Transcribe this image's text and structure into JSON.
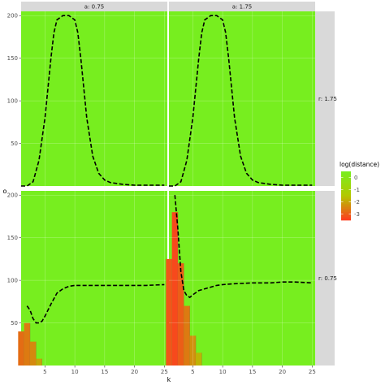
{
  "chart_data": {
    "type": "heatmap",
    "xlabel": "k",
    "ylabel": "o",
    "xlim": [
      1,
      25.5
    ],
    "ylim": [
      0,
      205
    ],
    "x_ticks": [
      5,
      10,
      15,
      20,
      25
    ],
    "y_ticks": [
      50,
      100,
      150,
      200
    ],
    "grid": true,
    "facet_columns": [
      "a: 0.75",
      "a: 1.75"
    ],
    "facet_rows": [
      "r: 1.75",
      "r: 0.75"
    ],
    "fill": {
      "title": "log(distance)",
      "legend_position": "right",
      "breaks": [
        0,
        -1,
        -2,
        -3
      ],
      "range": [
        -3.5,
        0.5
      ],
      "low_color": "#ff3b1f",
      "mid_color": "#b3c800",
      "high_color": "#77ee1f"
    },
    "panels": [
      {
        "col": "a: 0.75",
        "row": "r: 1.75",
        "boundary_line": {
          "x": [
            1,
            2,
            3,
            4,
            5,
            6,
            6.5,
            7,
            8,
            9,
            10,
            10.5,
            11,
            12,
            13,
            14,
            15,
            16,
            18,
            20,
            22,
            25
          ],
          "y": [
            0,
            0,
            5,
            30,
            80,
            150,
            180,
            195,
            200,
            200,
            195,
            180,
            150,
            80,
            35,
            15,
            7,
            4,
            2,
            1,
            1,
            1
          ]
        },
        "low_region": []
      },
      {
        "col": "a: 1.75",
        "row": "r: 1.75",
        "boundary_line": {
          "x": [
            1,
            2,
            3,
            4,
            5,
            6,
            6.5,
            7,
            8,
            9,
            10,
            10.5,
            11,
            12,
            13,
            14,
            15,
            16,
            18,
            20,
            22,
            25
          ],
          "y": [
            0,
            0,
            5,
            30,
            80,
            150,
            180,
            195,
            200,
            200,
            195,
            180,
            150,
            80,
            35,
            15,
            7,
            4,
            2,
            1,
            1,
            1
          ]
        },
        "low_region": []
      },
      {
        "col": "a: 0.75",
        "row": "r: 0.75",
        "boundary_line": {
          "x": [
            2,
            2.5,
            3,
            3.5,
            4,
            4.5,
            5,
            6,
            7,
            8,
            9,
            10,
            12,
            15,
            18,
            20,
            22,
            25
          ],
          "y": [
            70,
            65,
            55,
            50,
            50,
            52,
            58,
            72,
            85,
            90,
            93,
            94,
            94,
            94,
            94,
            94,
            94,
            95
          ]
        },
        "low_region": [
          {
            "x": 1,
            "y_top": 40,
            "value": -2.8
          },
          {
            "x": 2,
            "y_top": 50,
            "value": -2.6
          },
          {
            "x": 3,
            "y_top": 28,
            "value": -2.4
          },
          {
            "x": 4,
            "y_top": 8,
            "value": -2.0
          }
        ]
      },
      {
        "col": "a: 1.75",
        "row": "r: 0.75",
        "boundary_line": {
          "x": [
            2,
            2.5,
            3,
            3.5,
            4,
            4.5,
            5,
            6,
            7,
            8,
            9,
            10,
            12,
            15,
            18,
            20,
            22,
            25
          ],
          "y": [
            200,
            160,
            110,
            88,
            82,
            80,
            83,
            88,
            90,
            92,
            94,
            95,
            96,
            97,
            97,
            98,
            98,
            97
          ]
        },
        "low_region": [
          {
            "x": 1,
            "y_top": 125,
            "value": -3.1
          },
          {
            "x": 2,
            "y_top": 180,
            "value": -3.3
          },
          {
            "x": 3,
            "y_top": 120,
            "value": -3.0
          },
          {
            "x": 4,
            "y_top": 70,
            "value": -2.6
          },
          {
            "x": 5,
            "y_top": 35,
            "value": -2.3
          },
          {
            "x": 6,
            "y_top": 15,
            "value": -1.8
          }
        ]
      }
    ]
  }
}
